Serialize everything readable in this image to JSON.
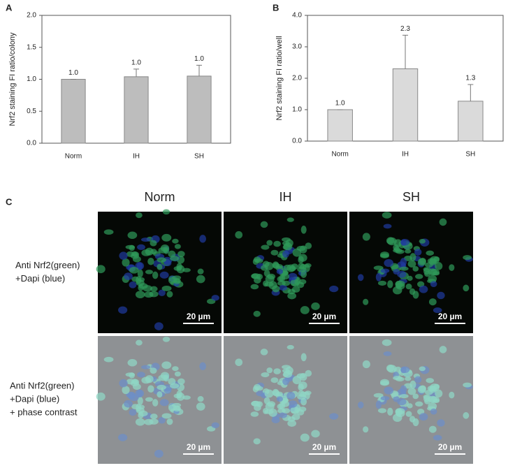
{
  "chart_data": [
    {
      "type": "bar",
      "panel": "A",
      "y_label": "Nrf2 staining FI ratio/colony",
      "categories": [
        "Norm",
        "IH",
        "SH"
      ],
      "values": [
        1.0,
        1.04,
        1.05
      ],
      "errors": [
        0,
        0.12,
        0.17
      ],
      "value_labels": [
        "1.0",
        "1.0",
        "1.0"
      ],
      "color": "#bdbdbd",
      "ylim": [
        0,
        2
      ],
      "yticks": [
        {
          "value": 0,
          "label": "0.0"
        },
        0.5,
        {
          "value": 1,
          "label": "1.0"
        },
        1.5,
        {
          "value": 2,
          "label": "2.0"
        }
      ]
    },
    {
      "type": "bar",
      "panel": "B",
      "y_label": "Nrf2 staining FI ratio/well",
      "categories": [
        "Norm",
        "IH",
        "SH"
      ],
      "values": [
        1.0,
        2.3,
        1.27
      ],
      "errors": [
        0,
        1.07,
        0.53
      ],
      "value_labels": [
        "1.0",
        "2.3",
        "1.3"
      ],
      "color": "#dadada",
      "ylim": [
        0,
        4
      ],
      "yticks": [
        {
          "value": 0,
          "label": "0.0"
        },
        {
          "value": 1,
          "label": "1.0"
        },
        {
          "value": 2,
          "label": "2.0"
        },
        {
          "value": 3,
          "label": "3.0"
        },
        {
          "value": 4,
          "label": "4.0"
        }
      ]
    }
  ],
  "image_panel": {
    "panel": "C",
    "columns": [
      "Norm",
      "IH",
      "SH"
    ],
    "row_labels": [
      [
        "Anti Nrf2(green)",
        "+Dapi (blue)"
      ],
      [
        "Anti Nrf2(green)",
        "+Dapi (blue)",
        "+ phase contrast"
      ]
    ],
    "scale_bar": "20 µm"
  }
}
